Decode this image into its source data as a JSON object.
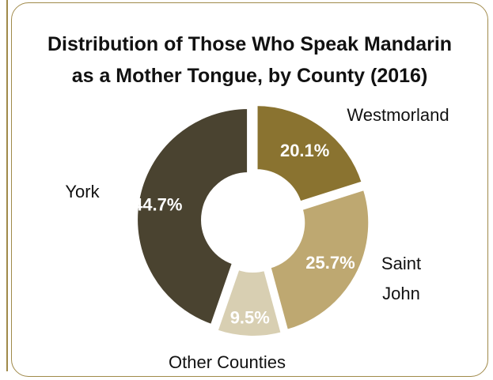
{
  "chart_data": {
    "type": "pie",
    "style": "donut",
    "title_lines": [
      "Distribution of Those Who Speak Mandarin",
      "as a Mother Tongue, by County (2016)"
    ],
    "slices": [
      {
        "label_lines": [
          "Westmorland"
        ],
        "value": 20.1,
        "value_text": "20.1%",
        "color": "#8a7330"
      },
      {
        "label_lines": [
          "Saint",
          "John"
        ],
        "value": 25.7,
        "value_text": "25.7%",
        "color": "#bea871"
      },
      {
        "label_lines": [
          "Other Counties"
        ],
        "value": 9.5,
        "value_text": "9.5%",
        "color": "#d8cfb2"
      },
      {
        "label_lines": [
          "York"
        ],
        "value": 44.7,
        "value_text": "44.7%",
        "color": "#4a4330"
      }
    ]
  }
}
